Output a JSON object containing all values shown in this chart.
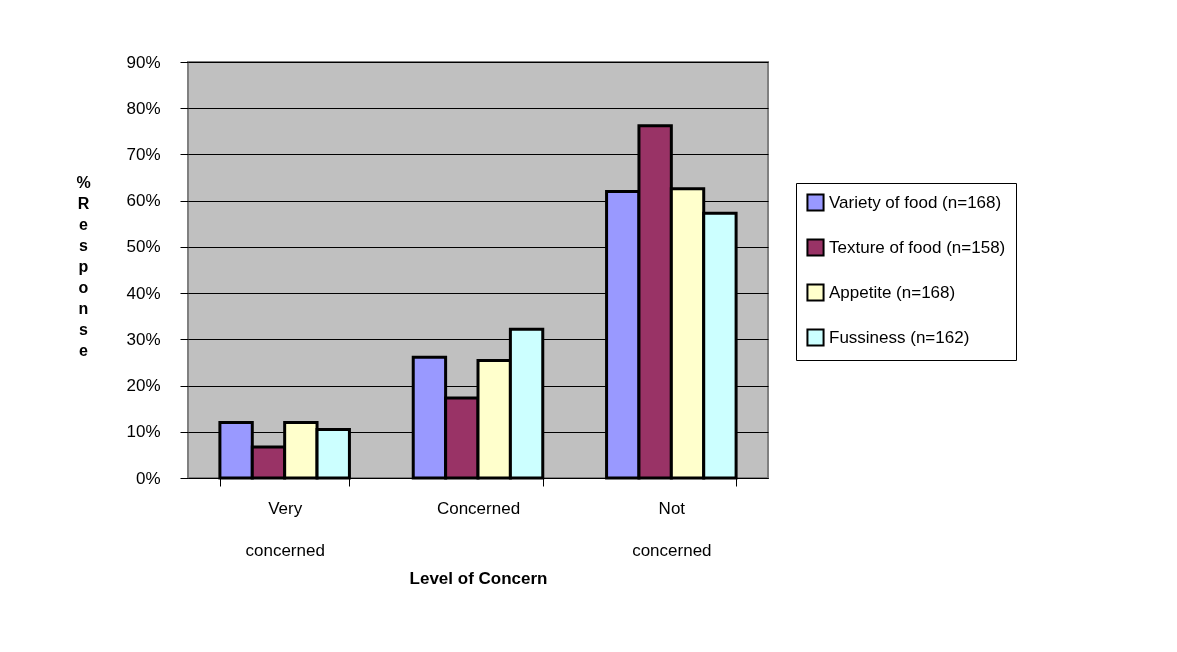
{
  "chart_data": {
    "type": "bar",
    "xlabel": "Level of Concern",
    "ylabel": "% Response",
    "categories": [
      "Very concerned",
      "Concerned",
      "Not concerned"
    ],
    "series": [
      {
        "name": "Variety of food (n=168)",
        "color": "#9999ff",
        "values": [
          12.0,
          26.1,
          62.0
        ]
      },
      {
        "name": "Texture of food (n=158)",
        "color": "#993366",
        "values": [
          6.7,
          17.3,
          76.2
        ]
      },
      {
        "name": "Appetite (n=168)",
        "color": "#ffffcc",
        "values": [
          12.0,
          25.4,
          62.6
        ]
      },
      {
        "name": "Fussiness (n=162)",
        "color": "#ccffff",
        "values": [
          10.5,
          32.2,
          57.3
        ]
      }
    ],
    "ylim": [
      0,
      90
    ],
    "yticks": [
      {
        "value": 0,
        "label": "0%"
      },
      {
        "value": 10,
        "label": "10%"
      },
      {
        "value": 20,
        "label": "20%"
      },
      {
        "value": 30,
        "label": "30%"
      },
      {
        "value": 40,
        "label": "40%"
      },
      {
        "value": 50,
        "label": "50%"
      },
      {
        "value": 60,
        "label": "60%"
      },
      {
        "value": 70,
        "label": "70%"
      },
      {
        "value": 80,
        "label": "80%"
      },
      {
        "value": 90,
        "label": "90%"
      }
    ],
    "grid": "y",
    "legend": "right"
  }
}
